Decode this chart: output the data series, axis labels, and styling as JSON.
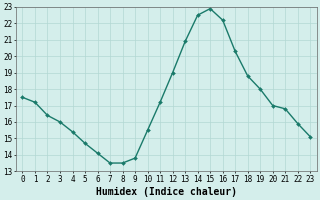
{
  "x": [
    0,
    1,
    2,
    3,
    4,
    5,
    6,
    7,
    8,
    9,
    10,
    11,
    12,
    13,
    14,
    15,
    16,
    17,
    18,
    19,
    20,
    21,
    22,
    23
  ],
  "y": [
    17.5,
    17.2,
    16.4,
    16.0,
    15.4,
    14.7,
    14.1,
    13.5,
    13.5,
    13.8,
    15.5,
    17.2,
    19.0,
    20.9,
    22.5,
    22.9,
    22.2,
    20.3,
    18.8,
    18.0,
    17.0,
    16.8,
    15.9,
    15.1
  ],
  "line_color": "#1a7a6a",
  "marker": "D",
  "markersize": 2.0,
  "linewidth": 1.0,
  "xlabel": "Humidex (Indice chaleur)",
  "xlabel_fontsize": 7,
  "xlim": [
    -0.5,
    23.5
  ],
  "ylim": [
    13,
    23
  ],
  "yticks": [
    13,
    14,
    15,
    16,
    17,
    18,
    19,
    20,
    21,
    22,
    23
  ],
  "xticks": [
    0,
    1,
    2,
    3,
    4,
    5,
    6,
    7,
    8,
    9,
    10,
    11,
    12,
    13,
    14,
    15,
    16,
    17,
    18,
    19,
    20,
    21,
    22,
    23
  ],
  "background_color": "#d4eeeb",
  "grid_color": "#b2d8d4",
  "tick_fontsize": 5.5,
  "spine_color": "#666666"
}
